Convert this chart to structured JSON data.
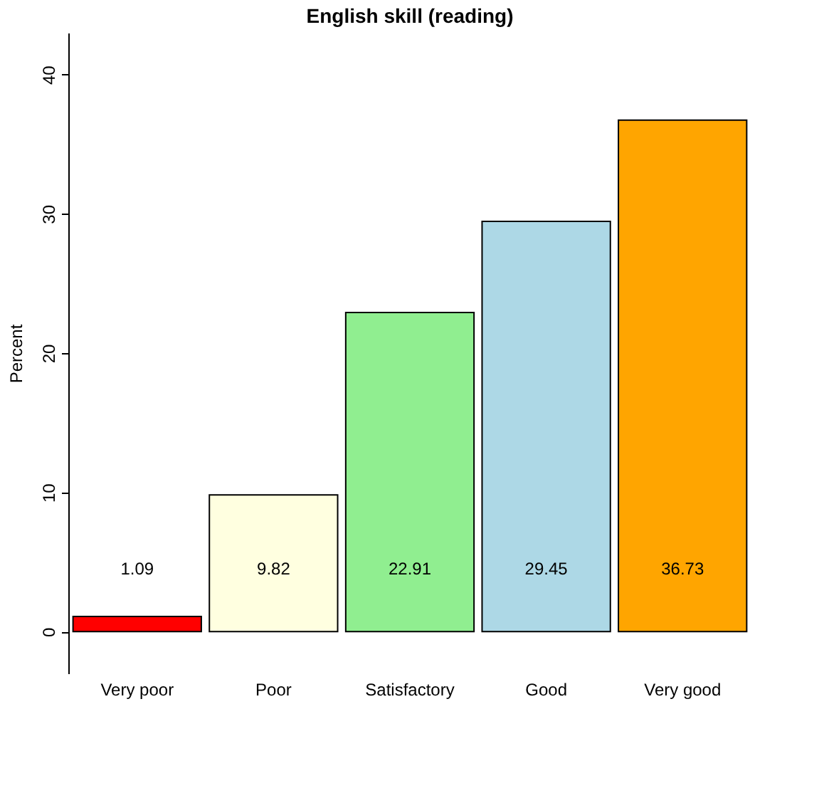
{
  "chart_data": {
    "type": "bar",
    "title": "English skill (reading)",
    "ylabel": "Percent",
    "categories": [
      "Very poor",
      "Poor",
      "Satisfactory",
      "Good",
      "Very good"
    ],
    "values": [
      1.09,
      9.82,
      22.91,
      29.45,
      36.73
    ],
    "colors": [
      "#ff0000",
      "#ffffe0",
      "#90ee90",
      "#add8e6",
      "#ffa500"
    ],
    "ylim": [
      -3,
      43
    ],
    "yticks": [
      0,
      10,
      20,
      30,
      40
    ],
    "grid": false,
    "data_labels": true
  }
}
